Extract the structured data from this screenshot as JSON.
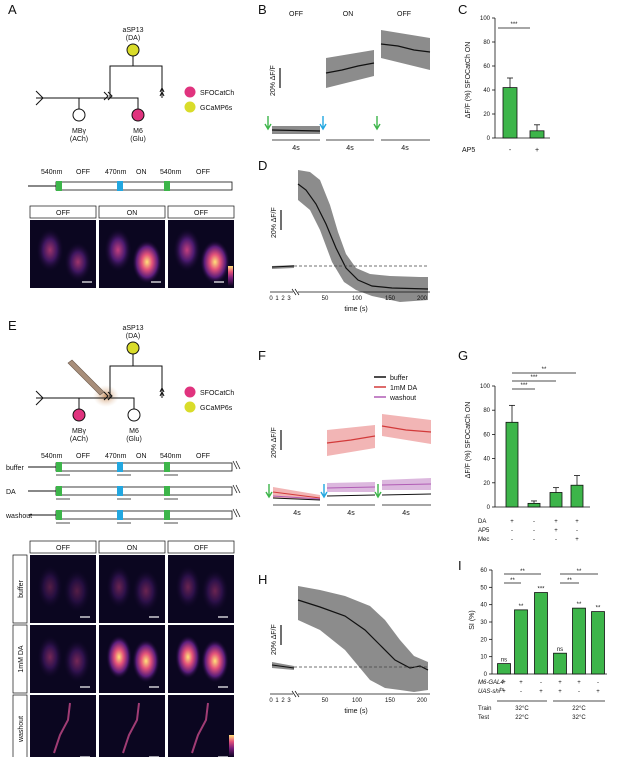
{
  "panels": {
    "A": {
      "letter": "A",
      "circuit": {
        "top_node": [
          "aSP13",
          "(DA)"
        ],
        "left_node": [
          "MBγ",
          "(ACh)"
        ],
        "right_node": [
          "M6",
          "(Glu)"
        ]
      },
      "legend": {
        "sfo": "SFOCatCh",
        "gcamp": "GCaMP6s"
      },
      "protocol": {
        "labels": [
          "540nm",
          "OFF",
          "470nm",
          "ON",
          "540nm",
          "OFF"
        ]
      },
      "images": {
        "labels": [
          "OFF",
          "ON",
          "OFF"
        ]
      },
      "colors": {
        "sfo": "#e0337e",
        "gcamp": "#d9dc2a",
        "green": "#3db54a",
        "blue": "#22a7e0"
      }
    },
    "B": {
      "letter": "B",
      "segments": [
        "OFF",
        "ON",
        "OFF"
      ],
      "scale": "20% ΔF/F",
      "time_labels": [
        "4s",
        "4s",
        "4s"
      ]
    },
    "C": {
      "letter": "C",
      "ylabel": "ΔF/F (%) SFOCatCh ON",
      "sig": "***",
      "row_label": "AP5",
      "chart_data": {
        "type": "bar",
        "categories": [
          "-",
          "+"
        ],
        "values": [
          42,
          6
        ],
        "errors": [
          8,
          5
        ],
        "ylim": [
          0,
          100
        ],
        "yticks": [
          0,
          20,
          40,
          60,
          80,
          100
        ]
      }
    },
    "D": {
      "letter": "D",
      "scale": "20% ΔF/F",
      "xlabel": "time (s)",
      "xticks": [
        "0",
        "1",
        "2",
        "3",
        "50",
        "100",
        "150",
        "200"
      ]
    },
    "E": {
      "letter": "E",
      "circuit": {
        "top_node": [
          "aSP13",
          "(DA)"
        ],
        "left_node": [
          "MBγ",
          "(ACh)"
        ],
        "right_node": [
          "M6",
          "(Glu)"
        ]
      },
      "legend": {
        "sfo": "SFOCatCh",
        "gcamp": "GCaMP6s"
      },
      "protocol": {
        "labels": [
          "540nm",
          "OFF",
          "470nm",
          "ON",
          "540nm",
          "OFF"
        ],
        "rows": [
          "buffer",
          "DA",
          "washout"
        ]
      },
      "images": {
        "labels": [
          "OFF",
          "ON",
          "OFF"
        ],
        "rows": [
          "buffer",
          "1mM DA",
          "washout"
        ]
      }
    },
    "F": {
      "letter": "F",
      "scale": "20% ΔF/F",
      "legend": [
        "buffer",
        "1mM DA",
        "washout"
      ],
      "legend_colors": [
        "#111111",
        "#d23a3a",
        "#b05cb5"
      ],
      "time_labels": [
        "4s",
        "4s",
        "4s"
      ]
    },
    "G": {
      "letter": "G",
      "ylabel": "ΔF/F (%) SFOCatCh ON",
      "sig": [
        "**",
        "***",
        "***"
      ],
      "rows": [
        {
          "label": "DA",
          "values": [
            "+",
            "-",
            "+",
            "+"
          ]
        },
        {
          "label": "AP5",
          "values": [
            "-",
            "-",
            "+",
            "-"
          ]
        },
        {
          "label": "Mec",
          "values": [
            "-",
            "-",
            "-",
            "+"
          ]
        }
      ],
      "chart_data": {
        "type": "bar",
        "categories": [
          "DA",
          "buffer",
          "DA+AP5",
          "DA+Mec"
        ],
        "values": [
          70,
          3,
          12,
          18
        ],
        "errors": [
          14,
          2,
          4,
          8
        ],
        "ylim": [
          0,
          100
        ],
        "yticks": [
          0,
          20,
          40,
          60,
          80,
          100
        ]
      }
    },
    "H": {
      "letter": "H",
      "scale": "20% ΔF/F",
      "xlabel": "time (s)",
      "xticks": [
        "0",
        "1",
        "2",
        "3",
        "50",
        "100",
        "150",
        "200"
      ]
    },
    "I": {
      "letter": "I",
      "ylabel": "SI (%)",
      "sig_pairs": [
        "**",
        "**",
        "**",
        "**"
      ],
      "bar_sig": [
        "ns",
        "**",
        "***",
        "ns",
        "**",
        "**"
      ],
      "geno_rows": [
        {
          "label": "M6-GAL4",
          "values": [
            "+",
            "+",
            "-",
            "+",
            "+",
            "-"
          ]
        },
        {
          "label": "UAS-shi",
          "sup": "ts",
          "values": [
            "+",
            "-",
            "+",
            "+",
            "-",
            "+"
          ]
        }
      ],
      "cond_rows": [
        {
          "label": "Train",
          "values": [
            "32°C",
            "22°C"
          ]
        },
        {
          "label": "Test",
          "values": [
            "22°C",
            "32°C"
          ]
        }
      ],
      "chart_data": {
        "type": "bar",
        "categories": [
          "1",
          "2",
          "3",
          "4",
          "5",
          "6"
        ],
        "values": [
          6,
          37,
          47,
          12,
          38,
          36
        ],
        "ylim": [
          0,
          60
        ],
        "yticks": [
          0,
          10,
          20,
          30,
          40,
          50,
          60
        ]
      }
    }
  }
}
